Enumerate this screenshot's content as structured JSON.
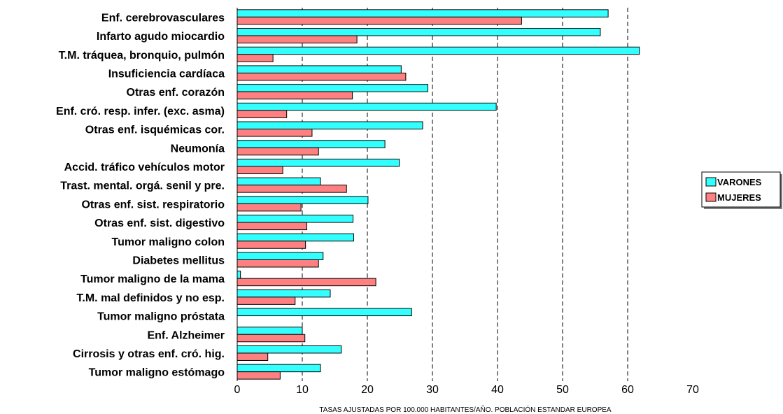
{
  "chart_data": {
    "type": "bar",
    "orientation": "horizontal",
    "categories": [
      "Enf. cerebrovasculares",
      "Infarto agudo miocardio",
      "T.M. tráquea, bronquio,  pulmón",
      "Insuficiencia cardíaca",
      "Otras enf. corazón",
      "Enf. cró. resp. infer. (exc. asma)",
      "Otras enf. isquémicas cor.",
      "Neumonía",
      "Accid. tráfico vehículos motor",
      "Trast. mental. orgá. senil y pre.",
      "Otras enf. sist. respiratorio",
      "Otras enf. sist. digestivo",
      "Tumor maligno colon",
      "Diabetes mellitus",
      "Tumor maligno de la mama",
      "T.M. mal definidos y no esp.",
      "Tumor maligno próstata",
      "Enf. Alzheimer",
      "Cirrosis y otras enf. cró. hig.",
      "Tumor maligno estómago"
    ],
    "series": [
      {
        "name": "VARONES",
        "color": "#33FFFF",
        "values": [
          57.0,
          55.8,
          61.8,
          25.2,
          29.3,
          39.8,
          28.5,
          22.7,
          24.9,
          12.8,
          20.1,
          17.8,
          17.9,
          13.2,
          0.5,
          14.3,
          26.8,
          10.0,
          16.0,
          12.8
        ]
      },
      {
        "name": "MUJERES",
        "color": "#FF8080",
        "values": [
          43.7,
          18.4,
          5.5,
          25.9,
          17.7,
          7.6,
          11.5,
          12.5,
          7.0,
          16.8,
          9.8,
          10.7,
          10.5,
          12.5,
          21.3,
          8.9,
          0.0,
          10.4,
          4.7,
          6.6
        ]
      }
    ],
    "xlabel": "TASAS AJUSTADAS POR 100.000 HABITANTES/AÑO. POBLACIÓN ESTANDAR EUROPEA",
    "xlim": [
      0,
      70
    ],
    "xticks": [
      0,
      10,
      20,
      30,
      40,
      50,
      60,
      70
    ],
    "grid": "vertical-dashed",
    "legend_position": "right"
  }
}
